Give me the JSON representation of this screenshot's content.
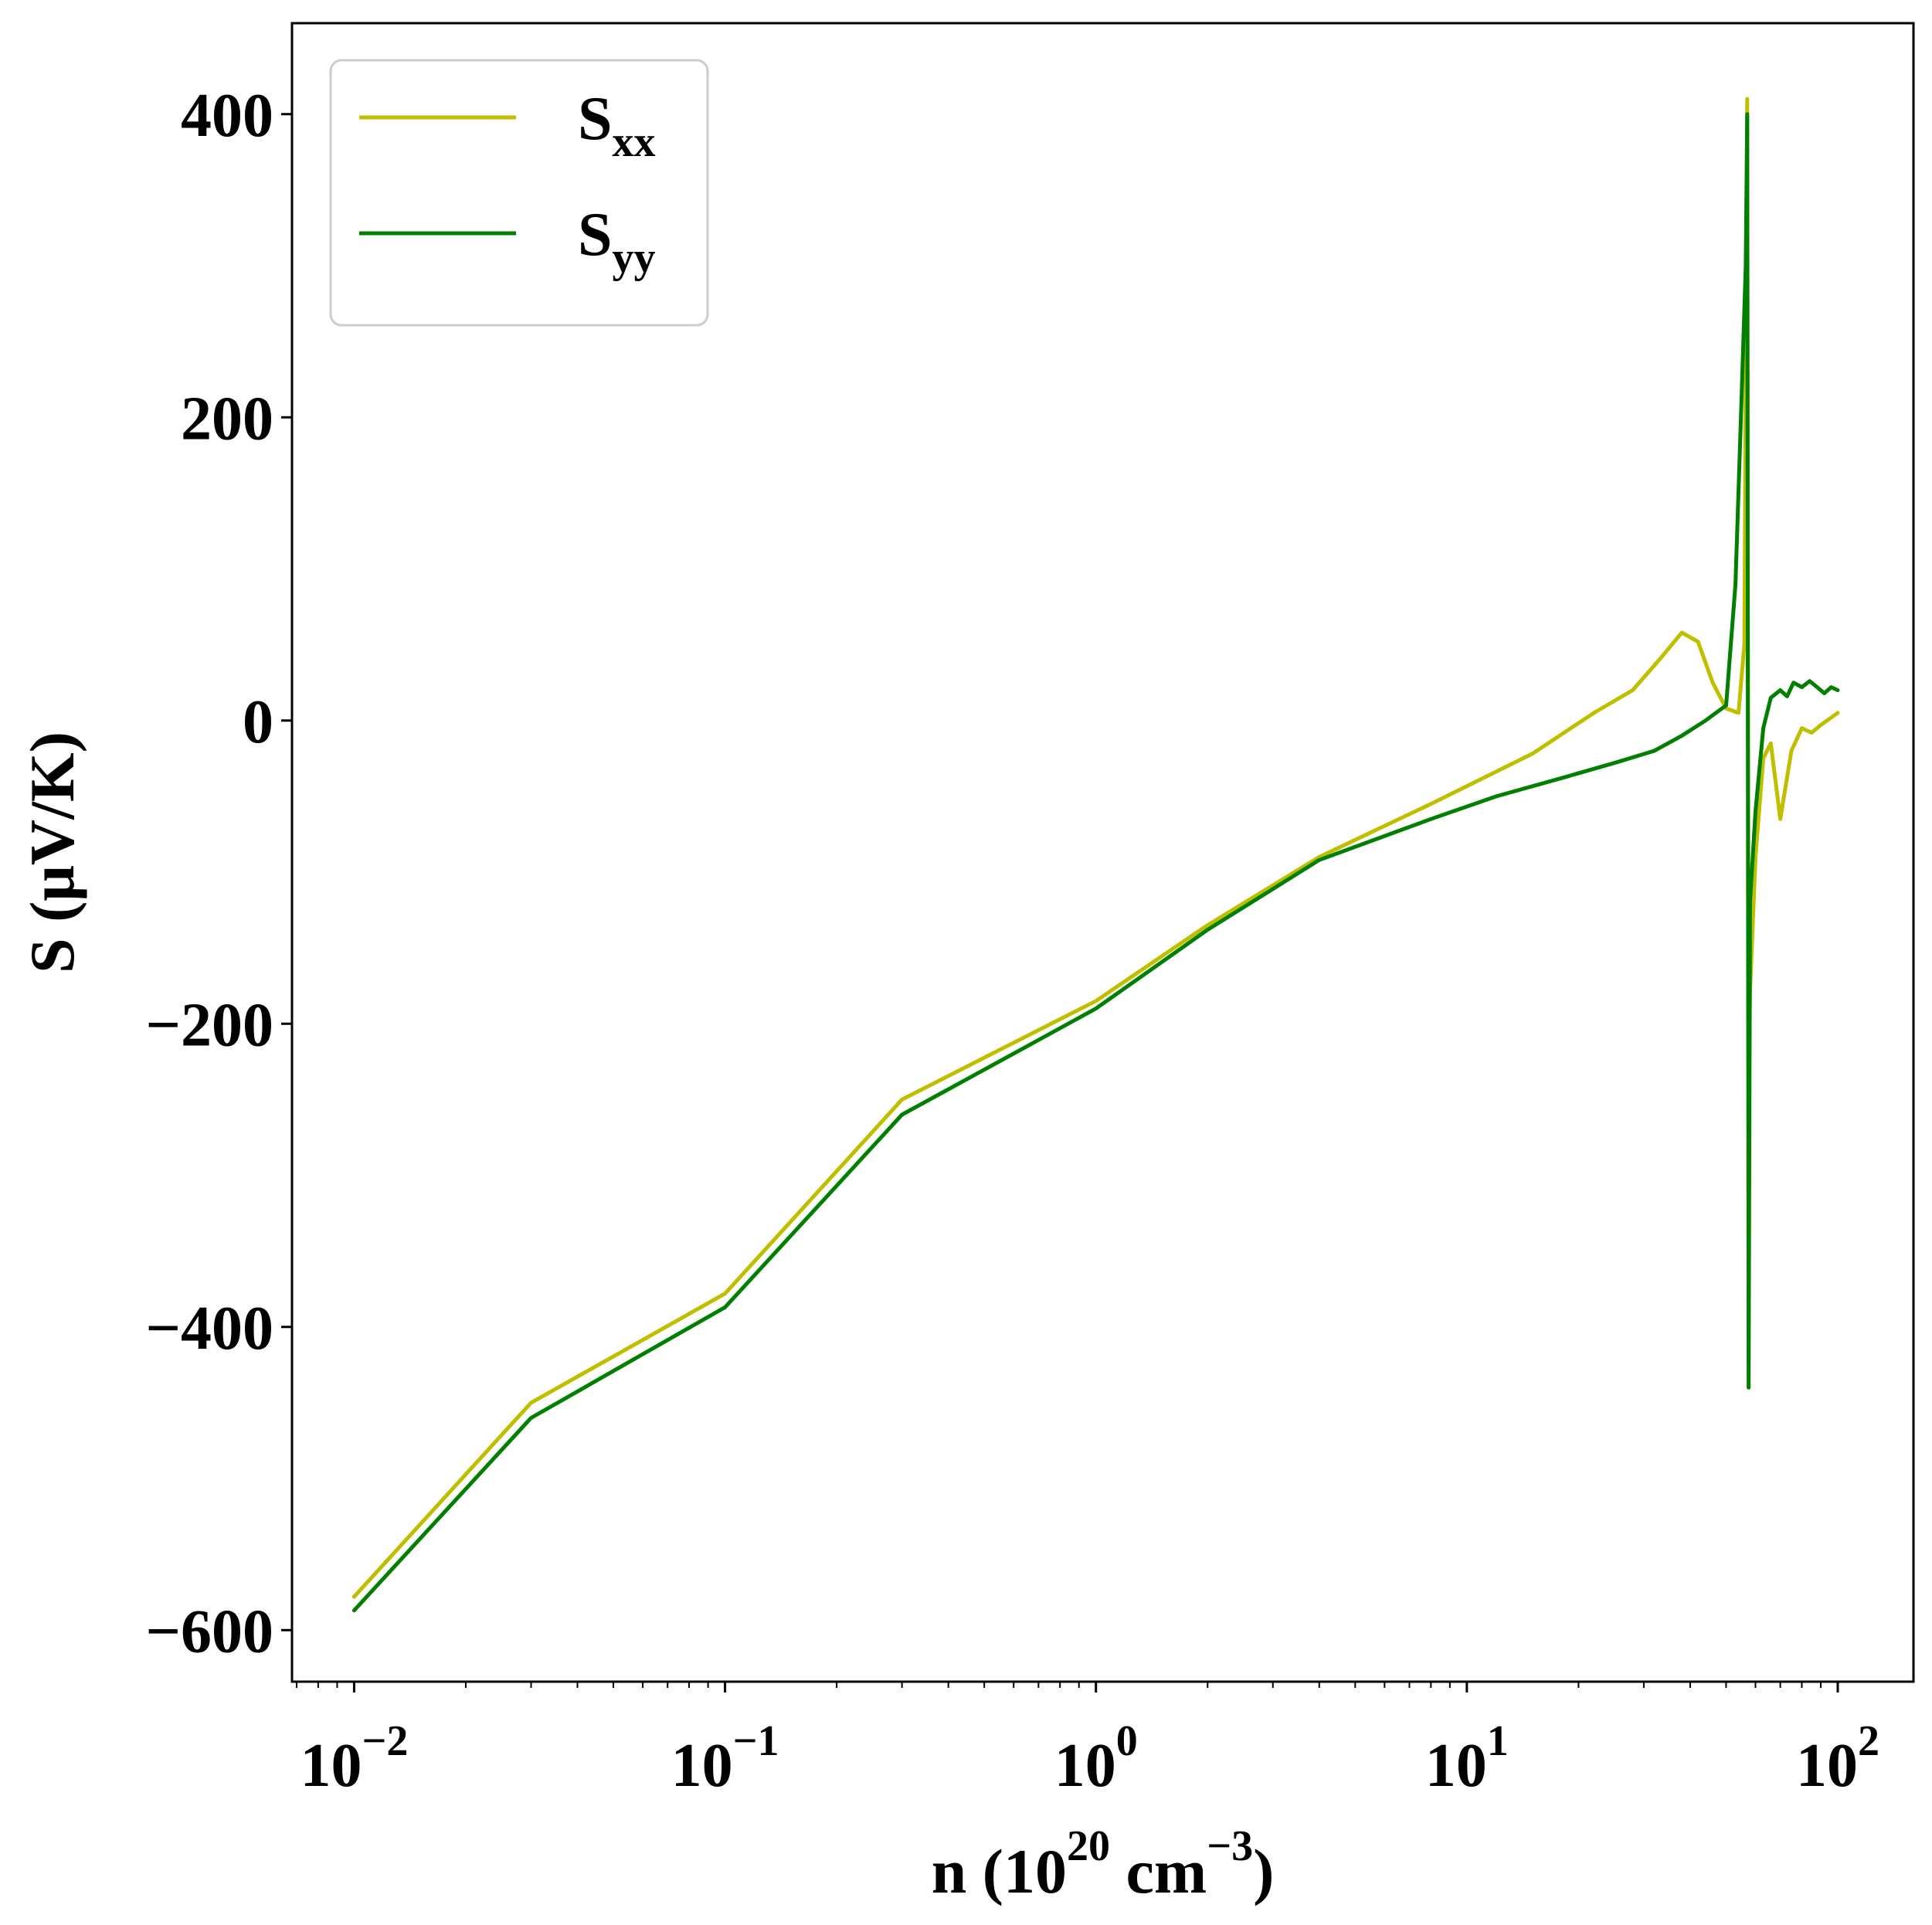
{
  "chart_data": {
    "type": "line",
    "title": "",
    "xlabel": "n (10^20 cm^-3)",
    "xlabel_parts": {
      "base": "n (10",
      "exp1": "20",
      "mid": " cm",
      "exp2": "−3",
      "end": ")"
    },
    "ylabel": "S (μV/K)",
    "xscale": "log",
    "xlim": [
      0.0068,
      160
    ],
    "ylim": [
      -634,
      460
    ],
    "grid": false,
    "legend_position": "top-left",
    "x_ticks": [
      {
        "value": 0.01,
        "base": "10",
        "exp": "−2"
      },
      {
        "value": 0.1,
        "base": "10",
        "exp": "−1"
      },
      {
        "value": 1,
        "base": "10",
        "exp": "0"
      },
      {
        "value": 10,
        "base": "10",
        "exp": "1"
      },
      {
        "value": 100,
        "base": "10",
        "exp": "2"
      }
    ],
    "y_ticks": [
      {
        "value": 400,
        "label": "400"
      },
      {
        "value": 200,
        "label": "200"
      },
      {
        "value": 0,
        "label": "0"
      },
      {
        "value": -200,
        "label": "−200"
      },
      {
        "value": -400,
        "label": "−400"
      },
      {
        "value": -600,
        "label": "−600"
      }
    ],
    "series": [
      {
        "name": "Sxx",
        "label_base": "S",
        "label_sub": "xx",
        "color": "#bfbf00",
        "points": [
          [
            0.01,
            -578
          ],
          [
            0.03,
            -450
          ],
          [
            0.1,
            -378
          ],
          [
            0.3,
            -250
          ],
          [
            1,
            -185
          ],
          [
            2,
            -135
          ],
          [
            4,
            -90
          ],
          [
            8,
            -55
          ],
          [
            15,
            -22
          ],
          [
            22,
            5
          ],
          [
            28,
            20
          ],
          [
            33,
            40
          ],
          [
            38,
            58
          ],
          [
            42,
            52
          ],
          [
            46,
            25
          ],
          [
            50,
            8
          ],
          [
            54,
            5
          ],
          [
            56,
            50
          ],
          [
            57,
            410
          ],
          [
            57.5,
            -280
          ],
          [
            58,
            -180
          ],
          [
            60,
            -90
          ],
          [
            63,
            -25
          ],
          [
            66,
            -15
          ],
          [
            70,
            -65
          ],
          [
            75,
            -20
          ],
          [
            80,
            -5
          ],
          [
            85,
            -8
          ],
          [
            90,
            -3
          ],
          [
            100,
            5
          ]
        ]
      },
      {
        "name": "Syy",
        "label_base": "S",
        "label_sub": "yy",
        "color": "#007f00",
        "points": [
          [
            0.01,
            -587
          ],
          [
            0.03,
            -460
          ],
          [
            0.1,
            -387
          ],
          [
            0.3,
            -260
          ],
          [
            1,
            -190
          ],
          [
            2,
            -138
          ],
          [
            4,
            -92
          ],
          [
            8,
            -65
          ],
          [
            12,
            -50
          ],
          [
            18,
            -38
          ],
          [
            25,
            -28
          ],
          [
            32,
            -20
          ],
          [
            38,
            -10
          ],
          [
            44,
            0
          ],
          [
            50,
            10
          ],
          [
            53,
            90
          ],
          [
            55,
            210
          ],
          [
            56.5,
            300
          ],
          [
            57,
            400
          ],
          [
            57.5,
            -440
          ],
          [
            58,
            -120
          ],
          [
            60,
            -60
          ],
          [
            63,
            -5
          ],
          [
            66,
            15
          ],
          [
            70,
            20
          ],
          [
            73,
            16
          ],
          [
            76,
            25
          ],
          [
            80,
            22
          ],
          [
            84,
            26
          ],
          [
            88,
            22
          ],
          [
            92,
            18
          ],
          [
            96,
            22
          ],
          [
            100,
            20
          ]
        ]
      }
    ]
  }
}
